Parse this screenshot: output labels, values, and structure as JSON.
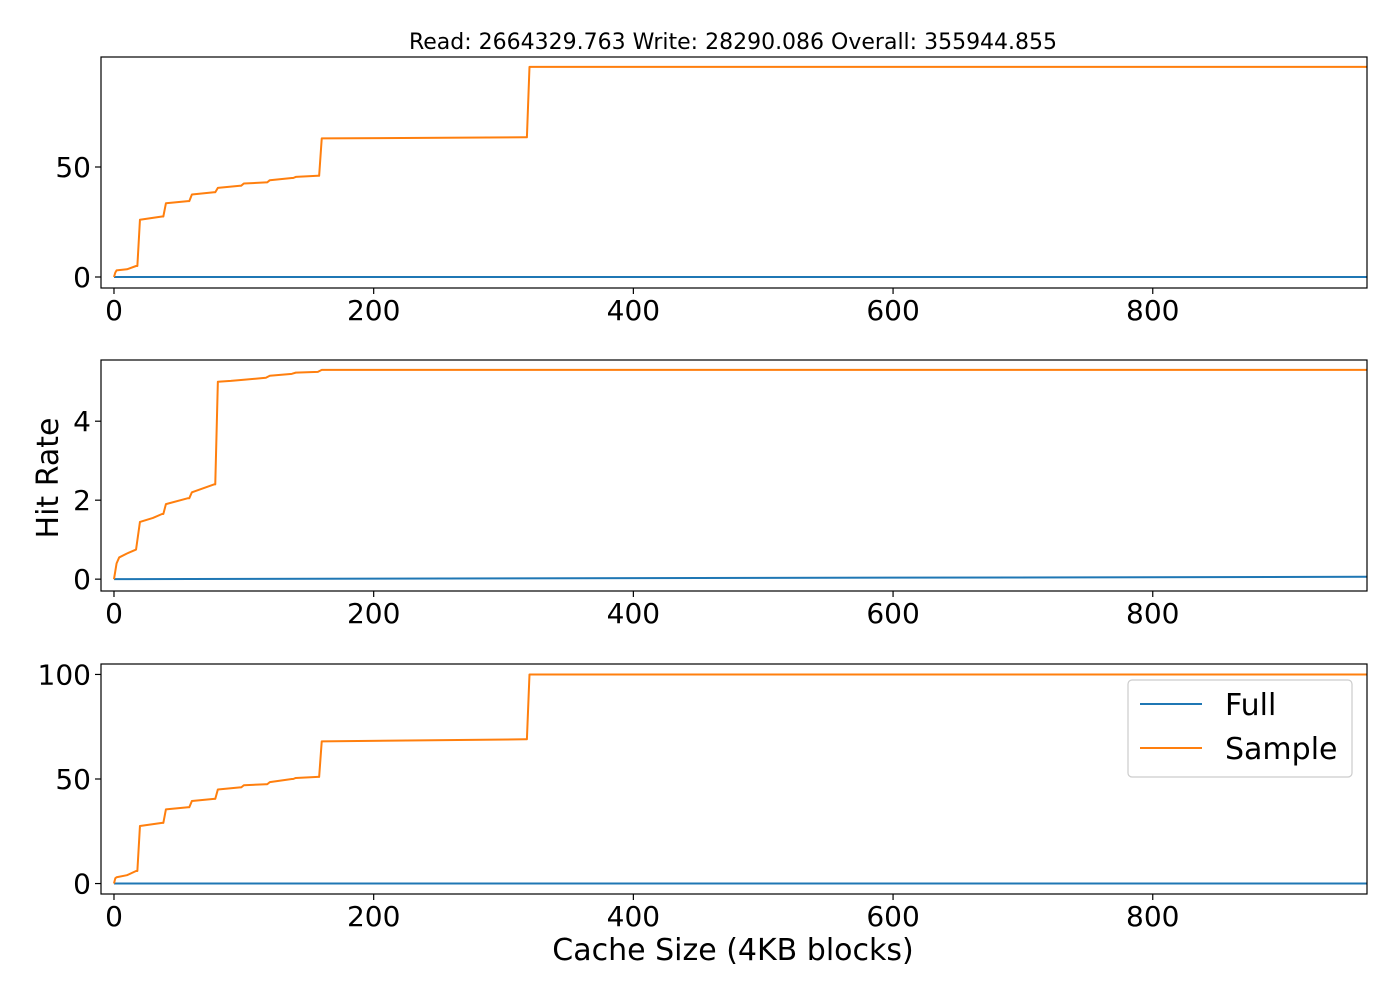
{
  "title": "Read: 2664329.763 Write: 28290.086 Overall: 355944.855",
  "xlabel": "Cache Size (4KB blocks)",
  "ylabel": "Hit Rate",
  "colors": {
    "full": "#1f77b4",
    "sample": "#ff7f0e"
  },
  "legend": {
    "placement": "upper-right of bottom panel",
    "entries": [
      "Full",
      "Sample"
    ]
  },
  "chart_data": [
    {
      "type": "line",
      "panel": "read",
      "xlim": [
        -10,
        965
      ],
      "ylim": [
        -5,
        100
      ],
      "xticks": [
        0,
        200,
        400,
        600,
        800
      ],
      "yticks": [
        0,
        50
      ],
      "grid": false,
      "series": [
        {
          "name": "Full",
          "x": [
            0,
            965
          ],
          "y": [
            0,
            0
          ]
        },
        {
          "name": "Sample",
          "x": [
            0,
            1,
            2,
            10,
            17,
            18,
            20,
            37,
            38,
            40,
            57,
            58,
            60,
            77,
            78,
            80,
            97,
            98,
            100,
            117,
            118,
            120,
            137,
            138,
            140,
            157,
            158,
            160,
            317,
            318,
            320,
            965
          ],
          "y": [
            0,
            2,
            3,
            3.5,
            5,
            5,
            26,
            27.5,
            27.5,
            33.5,
            34.5,
            34.5,
            37.5,
            38.5,
            38.5,
            40.5,
            41.5,
            41.5,
            42.5,
            43,
            43,
            44,
            45,
            45,
            45.5,
            46,
            46,
            63,
            63.5,
            63.5,
            95.5,
            95.5
          ]
        }
      ]
    },
    {
      "type": "line",
      "panel": "write",
      "xlim": [
        -10,
        965
      ],
      "ylim": [
        -0.3,
        5.55
      ],
      "xticks": [
        0,
        200,
        400,
        600,
        800
      ],
      "yticks": [
        0,
        2,
        4
      ],
      "grid": false,
      "series": [
        {
          "name": "Full",
          "x": [
            0,
            965
          ],
          "y": [
            0,
            0.06
          ]
        },
        {
          "name": "Sample",
          "x": [
            0,
            2,
            4,
            10,
            17,
            20,
            30,
            37,
            38,
            40,
            57,
            58,
            60,
            77,
            78,
            80,
            90,
            100,
            117,
            120,
            137,
            140,
            157,
            160,
            965
          ],
          "y": [
            0,
            0.4,
            0.55,
            0.65,
            0.75,
            1.45,
            1.55,
            1.65,
            1.65,
            1.9,
            2.05,
            2.05,
            2.2,
            2.4,
            2.4,
            5.0,
            5.02,
            5.05,
            5.1,
            5.15,
            5.2,
            5.23,
            5.25,
            5.3,
            5.3
          ]
        }
      ]
    },
    {
      "type": "line",
      "panel": "overall",
      "xlim": [
        -10,
        965
      ],
      "ylim": [
        -5,
        105
      ],
      "xticks": [
        0,
        200,
        400,
        600,
        800
      ],
      "yticks": [
        0,
        50,
        100
      ],
      "grid": false,
      "series": [
        {
          "name": "Full",
          "x": [
            0,
            965
          ],
          "y": [
            0,
            0
          ]
        },
        {
          "name": "Sample",
          "x": [
            0,
            1,
            2,
            10,
            17,
            18,
            20,
            37,
            38,
            40,
            57,
            58,
            60,
            77,
            78,
            80,
            97,
            98,
            100,
            117,
            118,
            120,
            137,
            138,
            140,
            157,
            158,
            160,
            317,
            318,
            320,
            965
          ],
          "y": [
            0,
            2.5,
            3,
            4,
            6,
            6,
            27.5,
            29,
            29,
            35.5,
            36.5,
            36.5,
            39.5,
            40.5,
            40.5,
            45,
            46,
            46,
            47,
            47.5,
            47.5,
            48.5,
            50,
            50,
            50.5,
            51,
            51,
            68,
            69,
            69,
            100,
            100
          ]
        }
      ]
    }
  ]
}
